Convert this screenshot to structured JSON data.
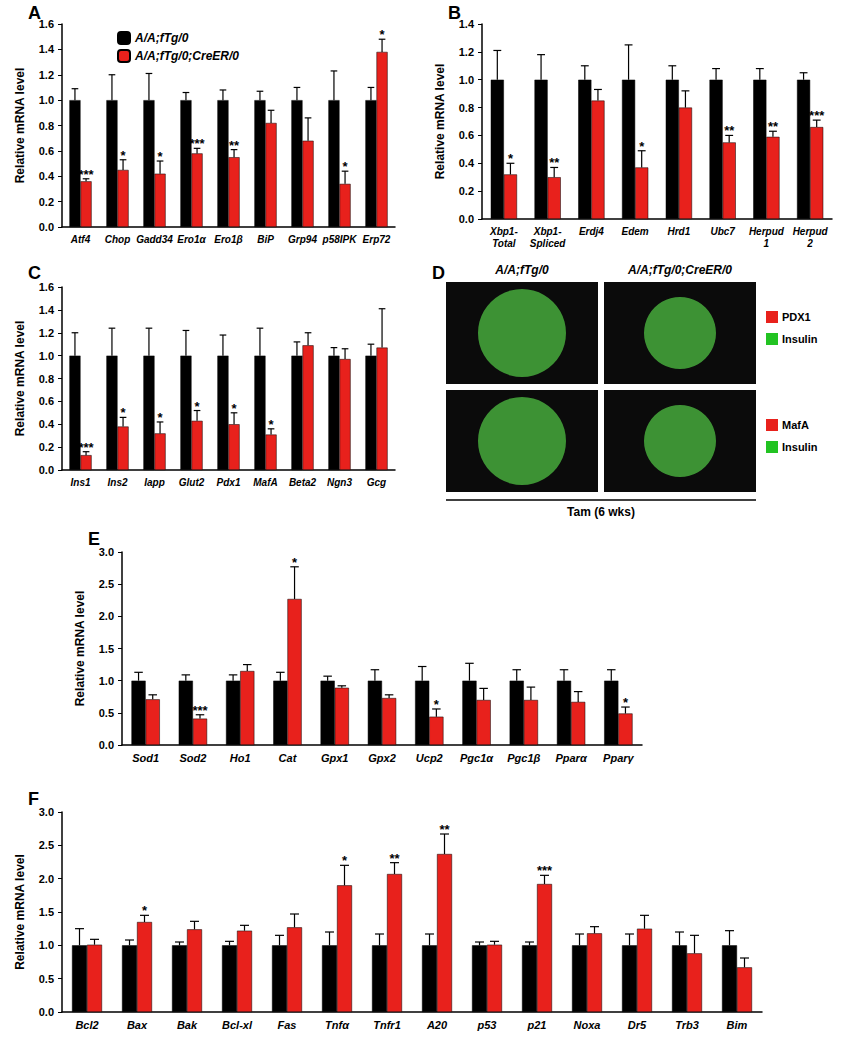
{
  "chart_data": [
    {
      "type": "bar",
      "title": "A",
      "ylabel": "Relative mRNA level",
      "categories": [
        "Atf4",
        "Chop",
        "Gadd34",
        "Ero1α",
        "Ero1β",
        "BiP",
        "Grp94",
        "p58IPK",
        "Erp72"
      ],
      "ylim": [
        0,
        1.6
      ],
      "yticks": [
        {
          "value": 0,
          "label": "0.0"
        },
        0.2,
        0.4,
        0.6,
        0.8,
        {
          "value": 1,
          "label": "1.0"
        },
        1.2,
        1.4,
        1.6
      ],
      "grid": false,
      "legend": "upper left",
      "series": [
        {
          "name": "A/A;fTg/0",
          "color": "#000000",
          "values": [
            1,
            1,
            1,
            1,
            1,
            1,
            1,
            1,
            1
          ],
          "errors": [
            0.09,
            0.2,
            0.21,
            0.06,
            0.08,
            0.07,
            0.1,
            0.23,
            0.1
          ]
        },
        {
          "name": "A/A;fTg/0;CreER/0",
          "color": "#e8211c",
          "values": [
            0.36,
            0.45,
            0.42,
            0.58,
            0.55,
            0.82,
            0.68,
            0.34,
            1.38
          ],
          "errors": [
            0.02,
            0.08,
            0.1,
            0.04,
            0.06,
            0.1,
            0.18,
            0.1,
            0.1
          ],
          "significance": [
            "***",
            "*",
            "*",
            "***",
            "**",
            null,
            null,
            "*",
            "*"
          ]
        }
      ]
    },
    {
      "type": "bar",
      "title": "B",
      "ylabel": "Relative mRNA level",
      "categories": [
        "Xbp1-\nTotal",
        "Xbp1-\nSpliced",
        "Erdj4",
        "Edem",
        "Hrd1",
        "Ubc7",
        "Herpud\n1",
        "Herpud\n2"
      ],
      "ylim": [
        0,
        1.4
      ],
      "yticks": [
        {
          "value": 0,
          "label": "0.0"
        },
        0.2,
        0.4,
        0.6,
        0.8,
        {
          "value": 1,
          "label": "1.0"
        },
        1.2,
        1.4
      ],
      "grid": false,
      "series": [
        {
          "color": "#000000",
          "values": [
            1,
            1,
            1,
            1,
            1,
            1,
            1,
            1
          ],
          "errors": [
            0.21,
            0.18,
            0.1,
            0.25,
            0.1,
            0.08,
            0.08,
            0.05
          ]
        },
        {
          "color": "#e8211c",
          "values": [
            0.32,
            0.3,
            0.85,
            0.37,
            0.8,
            0.55,
            0.59,
            0.66
          ],
          "errors": [
            0.08,
            0.07,
            0.08,
            0.12,
            0.12,
            0.05,
            0.04,
            0.05
          ],
          "significance": [
            "*",
            "**",
            null,
            "*",
            null,
            "**",
            "**",
            "***"
          ]
        }
      ]
    },
    {
      "type": "bar",
      "title": "C",
      "ylabel": "Relative mRNA level",
      "categories": [
        "Ins1",
        "Ins2",
        "Iapp",
        "Glut2",
        "Pdx1",
        "MafA",
        "Beta2",
        "Ngn3",
        "Gcg"
      ],
      "ylim": [
        0,
        1.6
      ],
      "yticks": [
        {
          "value": 0,
          "label": "0.0"
        },
        0.2,
        0.4,
        0.6,
        0.8,
        {
          "value": 1,
          "label": "1.0"
        },
        1.2,
        1.4,
        1.6
      ],
      "grid": false,
      "series": [
        {
          "color": "#000000",
          "values": [
            1,
            1,
            1,
            1,
            1,
            1,
            1,
            1,
            1
          ],
          "errors": [
            0.2,
            0.24,
            0.24,
            0.22,
            0.18,
            0.24,
            0.12,
            0.07,
            0.1
          ]
        },
        {
          "color": "#e8211c",
          "values": [
            0.13,
            0.38,
            0.32,
            0.43,
            0.4,
            0.31,
            1.09,
            0.97,
            1.07
          ],
          "errors": [
            0.03,
            0.08,
            0.1,
            0.09,
            0.1,
            0.05,
            0.11,
            0.09,
            0.34
          ],
          "significance": [
            "***",
            "*",
            "*",
            "*",
            "*",
            "*",
            null,
            null,
            null
          ]
        }
      ]
    },
    {
      "type": "bar",
      "title": "E",
      "ylabel": "Relative mRNA level",
      "categories": [
        "Sod1",
        "Sod2",
        "Ho1",
        "Cat",
        "Gpx1",
        "Gpx2",
        "Ucp2",
        "Pgc1α",
        "Pgc1β",
        "Pparα",
        "Pparγ"
      ],
      "ylim": [
        0,
        3
      ],
      "yticks": [
        {
          "value": 0,
          "label": "0.0"
        },
        0.5,
        {
          "value": 1,
          "label": "1.0"
        },
        1.5,
        {
          "value": 2,
          "label": "2.0"
        },
        2.5,
        {
          "value": 3,
          "label": "3.0"
        }
      ],
      "grid": false,
      "series": [
        {
          "color": "#000000",
          "values": [
            1,
            1,
            1,
            1,
            1,
            1,
            1,
            1,
            1,
            1,
            1
          ],
          "errors": [
            0.13,
            0.09,
            0.09,
            0.13,
            0.07,
            0.17,
            0.22,
            0.27,
            0.17,
            0.17,
            0.17
          ]
        },
        {
          "color": "#e8211c",
          "values": [
            0.71,
            0.41,
            1.15,
            2.27,
            0.89,
            0.73,
            0.44,
            0.7,
            0.7,
            0.67,
            0.49
          ],
          "errors": [
            0.07,
            0.06,
            0.1,
            0.5,
            0.03,
            0.05,
            0.12,
            0.18,
            0.2,
            0.16,
            0.1
          ],
          "significance": [
            null,
            "***",
            null,
            "*",
            null,
            null,
            "*",
            null,
            null,
            null,
            "*"
          ]
        }
      ]
    },
    {
      "type": "bar",
      "title": "F",
      "ylabel": "Relative mRNA level",
      "categories": [
        "Bcl2",
        "Bax",
        "Bak",
        "Bcl-xl",
        "Fas",
        "Tnfα",
        "Tnfr1",
        "A20",
        "p53",
        "p21",
        "Noxa",
        "Dr5",
        "Trb3",
        "Bim"
      ],
      "ylim": [
        0,
        3
      ],
      "yticks": [
        {
          "value": 0,
          "label": "0.0"
        },
        0.5,
        {
          "value": 1,
          "label": "1.0"
        },
        1.5,
        {
          "value": 2,
          "label": "2.0"
        },
        2.5,
        {
          "value": 3,
          "label": "3.0"
        }
      ],
      "grid": false,
      "series": [
        {
          "color": "#000000",
          "values": [
            1,
            1,
            1,
            1,
            1,
            1,
            1,
            1,
            1,
            1,
            1,
            1,
            1,
            1
          ],
          "errors": [
            0.25,
            0.08,
            0.05,
            0.06,
            0.15,
            0.2,
            0.17,
            0.17,
            0.05,
            0.05,
            0.17,
            0.17,
            0.2,
            0.22
          ]
        },
        {
          "color": "#e8211c",
          "values": [
            1.01,
            1.35,
            1.24,
            1.22,
            1.27,
            1.9,
            2.07,
            2.37,
            1.01,
            1.92,
            1.18,
            1.25,
            0.88,
            0.67
          ],
          "errors": [
            0.08,
            0.1,
            0.12,
            0.08,
            0.2,
            0.3,
            0.17,
            0.3,
            0.05,
            0.13,
            0.1,
            0.2,
            0.27,
            0.14
          ],
          "significance": [
            null,
            "*",
            null,
            null,
            null,
            "*",
            "**",
            "**",
            null,
            "***",
            null,
            null,
            null,
            null
          ]
        }
      ]
    }
  ],
  "panel_d": {
    "title": "D",
    "columns": [
      "A/A;fTg/0",
      "A/A;fTg/0;CreER/0"
    ],
    "rows": [
      {
        "labels": [
          {
            "text": "PDX1",
            "color": "#e8211c"
          },
          {
            "text": "Insulin",
            "color": "#22c322"
          }
        ]
      },
      {
        "labels": [
          {
            "text": "MafA",
            "color": "#e8211c"
          },
          {
            "text": "Insulin",
            "color": "#22c322"
          }
        ]
      }
    ],
    "footer": "Tam (6 wks)"
  }
}
